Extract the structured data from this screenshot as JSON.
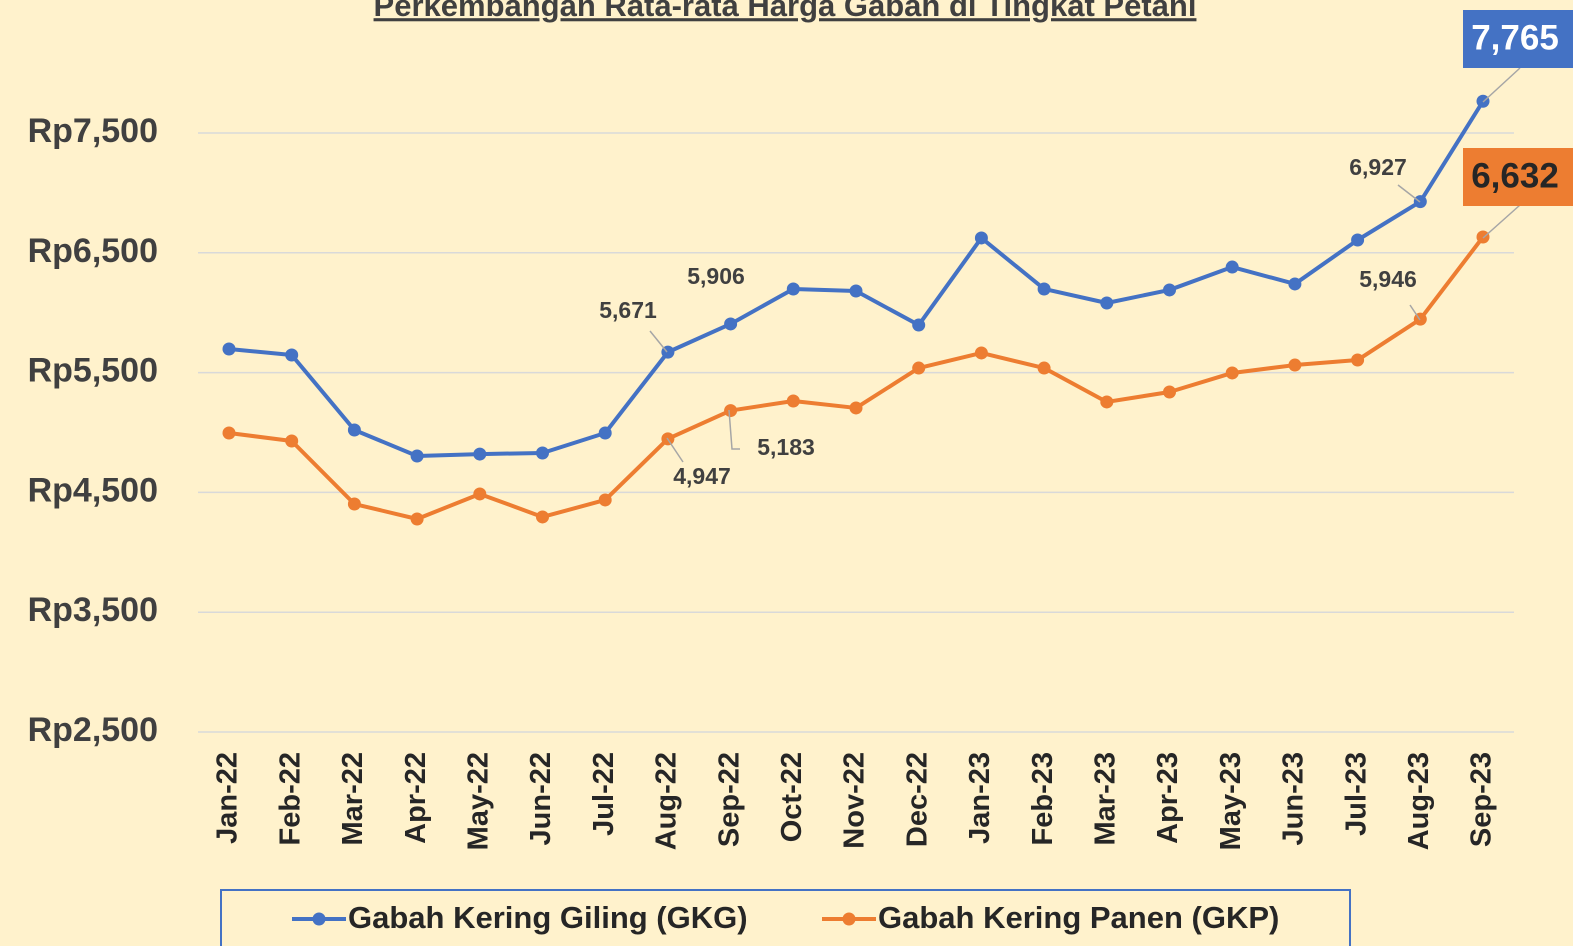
{
  "chart_data": {
    "type": "line",
    "title": "Perkembangan Rata-rata Harga Gabah di Tingkat Petani",
    "categories": [
      "Jan-22",
      "Feb-22",
      "Mar-22",
      "Apr-22",
      "May-22",
      "Jun-22",
      "Jul-22",
      "Aug-22",
      "Sep-22",
      "Oct-22",
      "Nov-22",
      "Dec-22",
      "Jan-23",
      "Feb-23",
      "Mar-23",
      "Apr-23",
      "May-23",
      "Jun-23",
      "Jul-23",
      "Aug-23",
      "Sep-23"
    ],
    "series": [
      {
        "name": "Gabah Kering Giling (GKG)",
        "color": "#4472c4",
        "values": [
          5697,
          5647,
          5021,
          4804,
          4820,
          4829,
          4996,
          5671,
          5906,
          6198,
          6181,
          5897,
          6624,
          6198,
          6081,
          6190,
          6381,
          6240,
          6607,
          6927,
          7765
        ],
        "value_labels": [
          null,
          null,
          null,
          null,
          null,
          null,
          null,
          "5,671",
          "5,906",
          null,
          null,
          null,
          null,
          null,
          null,
          null,
          null,
          null,
          null,
          "6,927",
          "7,765"
        ]
      },
      {
        "name": "Gabah Kering Panen (GKP)",
        "color": "#ed7d31",
        "values": [
          4996,
          4929,
          4403,
          4278,
          4487,
          4295,
          4437,
          4947,
          5183,
          5263,
          5205,
          5538,
          5664,
          5538,
          5255,
          5338,
          5497,
          5563,
          5605,
          5946,
          6632
        ],
        "value_labels": [
          null,
          null,
          null,
          null,
          null,
          null,
          null,
          "4,947",
          "5,183",
          null,
          null,
          null,
          null,
          null,
          null,
          null,
          null,
          null,
          null,
          "5,946",
          "6,632"
        ]
      }
    ],
    "ylim": [
      2500,
      8500
    ],
    "yticks": [
      {
        "value": 2500,
        "label": "Rp2,500"
      },
      {
        "value": 3500,
        "label": "Rp3,500"
      },
      {
        "value": 4500,
        "label": "Rp4,500"
      },
      {
        "value": 5500,
        "label": "Rp5,500"
      },
      {
        "value": 6500,
        "label": "Rp6,500"
      },
      {
        "value": 7500,
        "label": "Rp7,500"
      }
    ],
    "grid": true,
    "legend": "bottom"
  }
}
